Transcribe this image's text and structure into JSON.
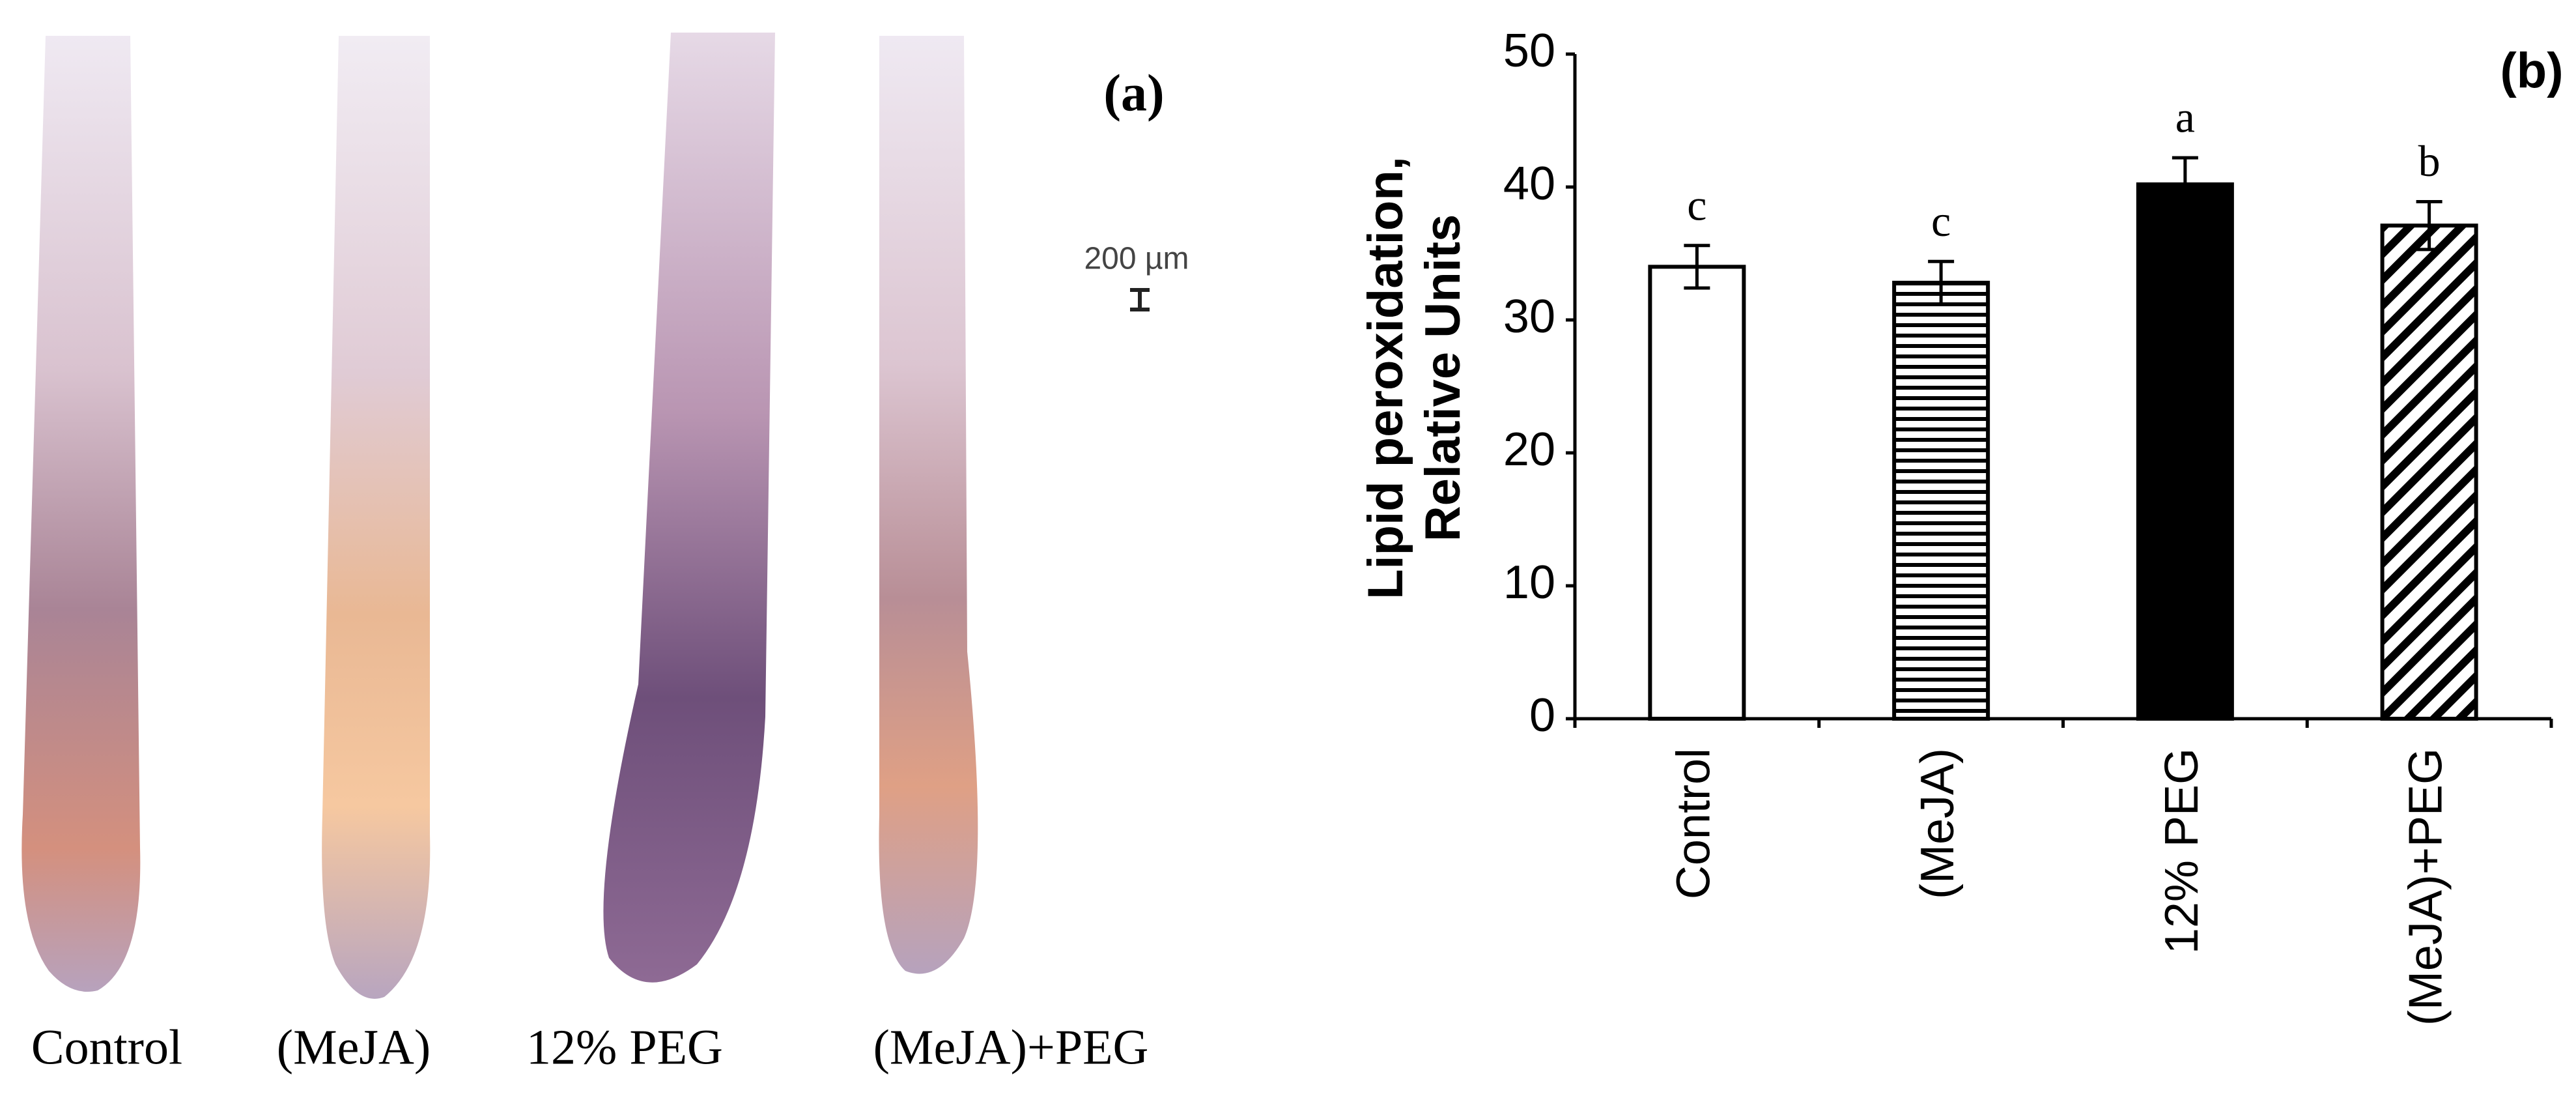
{
  "panel_a": {
    "label": "(a)",
    "scale_bar": "200 µm",
    "labels": [
      "Control",
      "(MeJA)",
      "12% PEG",
      "(MeJA)+PEG"
    ]
  },
  "chart_data": {
    "type": "bar",
    "panel_label": "(b)",
    "ylabel": [
      "Lipid peroxidation,",
      "Relative Units"
    ],
    "categories": [
      "Control",
      "(MeJA)",
      "12% PEG",
      "(MeJA)+PEG"
    ],
    "values": [
      34,
      32.8,
      40.2,
      37.1
    ],
    "errors": [
      1.6,
      1.6,
      2.0,
      1.8
    ],
    "annotations": [
      "c",
      "c",
      "a",
      "b"
    ],
    "fills": [
      "white",
      "horizontal-stripes",
      "black",
      "diagonal-stripes"
    ],
    "ylim": [
      0,
      50
    ],
    "yticks": [
      0,
      10,
      20,
      30,
      40,
      50
    ]
  }
}
